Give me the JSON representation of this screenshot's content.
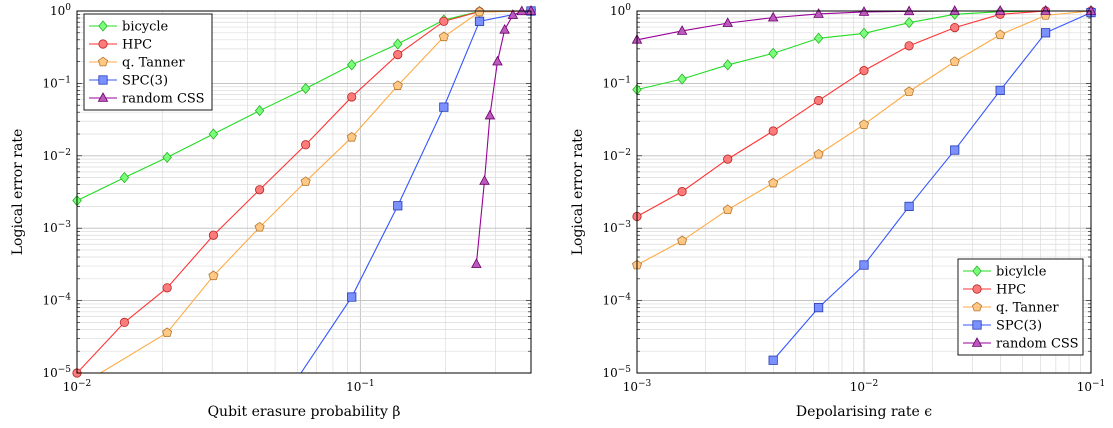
{
  "chart_data": [
    {
      "type": "line",
      "title": "",
      "xlabel": "Qubit erasure probability β",
      "ylabel": "Logical error rate",
      "xscale": "log",
      "yscale": "log",
      "xlim": [
        0.01,
        0.4
      ],
      "ylim": [
        1e-05,
        1
      ],
      "grid": true,
      "legend_position": "top-left",
      "x_tick_labels": [
        "10−2",
        "10−1"
      ],
      "y_tick_labels": [
        "10−5",
        "10−4",
        "10−3",
        "10−2",
        "10−1",
        "100"
      ],
      "series": [
        {
          "name": "bicycle",
          "color": "#33ff33",
          "marker": "diamond",
          "x": [
            0.01,
            0.0147,
            0.0208,
            0.0303,
            0.0441,
            0.0641,
            0.0932,
            0.1355,
            0.197,
            0.2633,
            0.4
          ],
          "y": [
            0.0024,
            0.005,
            0.0095,
            0.02,
            0.042,
            0.085,
            0.18,
            0.35,
            0.75,
            0.99,
            1.0
          ]
        },
        {
          "name": "HPC",
          "color": "#ff3333",
          "marker": "circle",
          "x": [
            0.01,
            0.0147,
            0.0208,
            0.0303,
            0.0441,
            0.0641,
            0.0932,
            0.1355,
            0.197,
            0.2633,
            0.4
          ],
          "y": [
            1e-05,
            5e-05,
            0.00015,
            0.0008,
            0.0034,
            0.0142,
            0.065,
            0.25,
            0.72,
            0.98,
            1.0
          ]
        },
        {
          "name": "q. Tanner",
          "color": "#ffaa44",
          "marker": "pentagon",
          "x": [
            0.0121,
            0.0208,
            0.0303,
            0.0441,
            0.0641,
            0.0932,
            0.1355,
            0.197,
            0.2633,
            0.4
          ],
          "y": [
            1e-05,
            3.6e-05,
            0.00022,
            0.00103,
            0.0044,
            0.018,
            0.093,
            0.44,
            0.97,
            1.0
          ]
        },
        {
          "name": "SPC(3)",
          "color": "#3355ff",
          "marker": "square",
          "x": [
            0.0617,
            0.0932,
            0.1355,
            0.197,
            0.2633,
            0.4
          ],
          "y": [
            1e-05,
            0.000112,
            0.00204,
            0.047,
            0.72,
            1.0
          ]
        },
        {
          "name": "random CSS",
          "color": "#990099",
          "marker": "triangle",
          "x": [
            0.2566,
            0.2741,
            0.2865,
            0.3046,
            0.3229,
            0.3453,
            0.3712,
            0.4
          ],
          "y": [
            0.00032,
            0.0045,
            0.036,
            0.2,
            0.55,
            0.88,
            0.99,
            1.0
          ]
        }
      ]
    },
    {
      "type": "line",
      "title": "",
      "xlabel": "Depolarising rate ϵ",
      "ylabel": "Logical error rate",
      "xscale": "log",
      "yscale": "log",
      "xlim": [
        0.001,
        0.1
      ],
      "ylim": [
        1e-05,
        1
      ],
      "grid": true,
      "legend_position": "bottom-right",
      "x_tick_labels": [
        "10−3",
        "10−2",
        "10−1"
      ],
      "y_tick_labels": [
        "10−5",
        "10−4",
        "10−3",
        "10−2",
        "10−1",
        "100"
      ],
      "series": [
        {
          "name": "bicylcle",
          "color": "#33ff33",
          "marker": "diamond",
          "x": [
            0.001,
            0.00158,
            0.00251,
            0.00398,
            0.00631,
            0.01,
            0.0158,
            0.0251,
            0.0398,
            0.0631,
            0.1
          ],
          "y": [
            0.082,
            0.115,
            0.18,
            0.26,
            0.42,
            0.49,
            0.69,
            0.9,
            0.98,
            1.0,
            1.0
          ]
        },
        {
          "name": "HPC",
          "color": "#ff3333",
          "marker": "circle",
          "x": [
            0.001,
            0.00158,
            0.00251,
            0.00398,
            0.00631,
            0.01,
            0.0158,
            0.0251,
            0.0398,
            0.0631,
            0.1
          ],
          "y": [
            0.00145,
            0.0032,
            0.009,
            0.022,
            0.058,
            0.15,
            0.33,
            0.59,
            0.9,
            1.0,
            1.0
          ]
        },
        {
          "name": "q. Tanner",
          "color": "#ffaa44",
          "marker": "pentagon",
          "x": [
            0.001,
            0.00158,
            0.00251,
            0.00398,
            0.00631,
            0.01,
            0.0158,
            0.0251,
            0.0398,
            0.0631,
            0.1
          ],
          "y": [
            0.00031,
            0.00067,
            0.0018,
            0.0042,
            0.0105,
            0.027,
            0.077,
            0.2,
            0.47,
            0.87,
            1.0
          ]
        },
        {
          "name": "SPC(3)",
          "color": "#3355ff",
          "marker": "square",
          "x": [
            0.00398,
            0.00631,
            0.01,
            0.0158,
            0.0251,
            0.0398,
            0.0631,
            0.1
          ],
          "y": [
            1.5e-05,
            8e-05,
            0.00031,
            0.002,
            0.012,
            0.08,
            0.5,
            0.95
          ]
        },
        {
          "name": "random CSS",
          "color": "#990099",
          "marker": "triangle",
          "x": [
            0.001,
            0.00158,
            0.00251,
            0.00398,
            0.00631,
            0.01,
            0.0158,
            0.0251,
            0.0398,
            0.0631,
            0.1
          ],
          "y": [
            0.4,
            0.53,
            0.68,
            0.81,
            0.91,
            0.97,
            0.99,
            1.0,
            1.0,
            1.0,
            1.0
          ]
        }
      ]
    }
  ]
}
